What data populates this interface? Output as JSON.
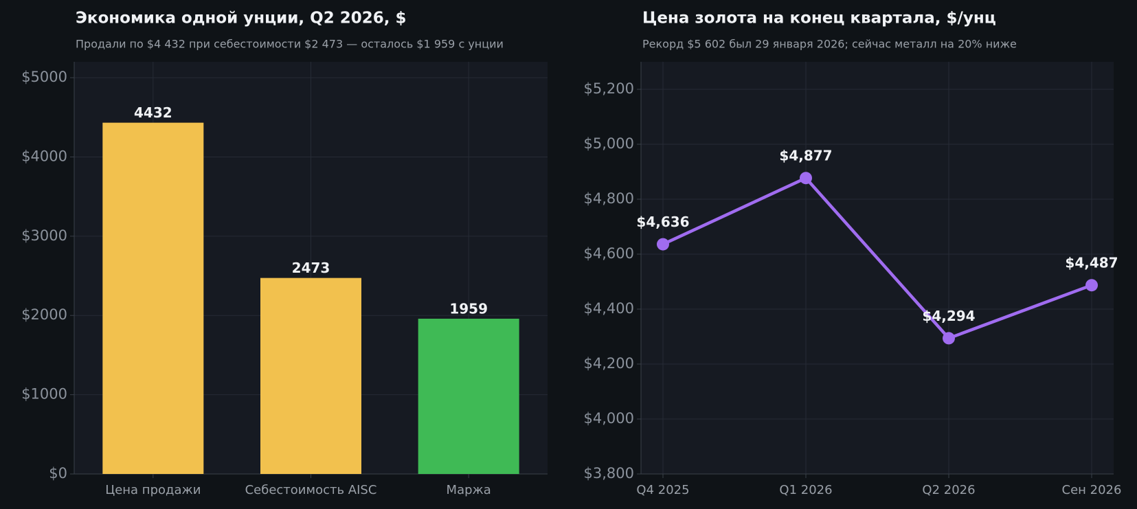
{
  "chart_data": [
    {
      "type": "bar",
      "title": "Экономика одной унции, Q2 2026, $",
      "subtitle": "Продали по $4 432 при себестоимости $2 473 — осталось $1 959 с унции",
      "categories": [
        "Цена продажи",
        "Себестоимость AISC",
        "Маржа"
      ],
      "values": [
        4432,
        2473,
        1959
      ],
      "colors": [
        "#f2c14e",
        "#f2c14e",
        "#3fba55"
      ],
      "ylim": [
        0,
        5200
      ],
      "yticks": [
        {
          "value": 0,
          "label": "$0"
        },
        {
          "value": 1000,
          "label": "$1000"
        },
        {
          "value": 2000,
          "label": "$2000"
        },
        {
          "value": 3000,
          "label": "$3000"
        },
        {
          "value": 4000,
          "label": "$4000"
        },
        {
          "value": 5000,
          "label": "$5000"
        }
      ],
      "grid": true
    },
    {
      "type": "line",
      "title": "Цена золота на конец квартала, $/унц",
      "subtitle": "Рекорд $5 602 был 29 января 2026; сейчас металл на 20% ниже",
      "categories": [
        "Q4 2025",
        "Q1 2026",
        "Q2 2026",
        "Сен 2026"
      ],
      "values": [
        4636,
        4877,
        4294,
        4487
      ],
      "value_labels": [
        "$4,636",
        "$4,877",
        "$4,294",
        "$4,487"
      ],
      "color": "#a06cf0",
      "ylim": [
        3800,
        5300
      ],
      "yticks": [
        {
          "value": 3800,
          "label": "$3,800"
        },
        {
          "value": 4000,
          "label": "$4,000"
        },
        {
          "value": 4200,
          "label": "$4,200"
        },
        {
          "value": 4400,
          "label": "$4,400"
        },
        {
          "value": 4600,
          "label": "$4,600"
        },
        {
          "value": 4800,
          "label": "$4,800"
        },
        {
          "value": 5000,
          "label": "$5,000"
        },
        {
          "value": 5200,
          "label": "$5,200"
        }
      ],
      "grid": true
    }
  ]
}
